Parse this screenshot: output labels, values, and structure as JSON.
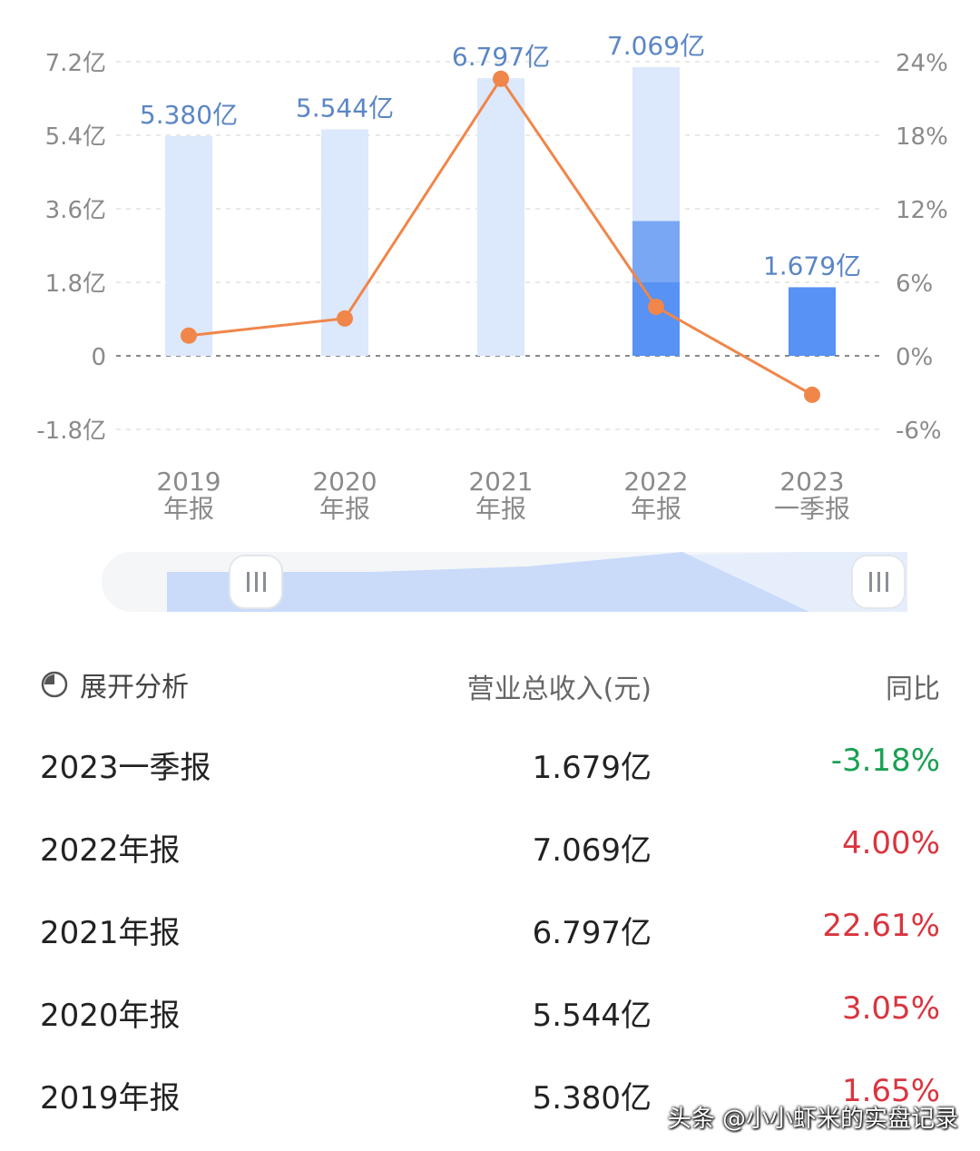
{
  "chart_data": {
    "type": "bar",
    "categories": [
      {
        "year": "2019",
        "report": "年报"
      },
      {
        "year": "2020",
        "report": "年报"
      },
      {
        "year": "2021",
        "report": "年报"
      },
      {
        "year": "2022",
        "report": "年报"
      },
      {
        "year": "2023",
        "report": "一季报"
      }
    ],
    "series": [
      {
        "type": "bar",
        "values": [
          5.38,
          5.544,
          6.797,
          7.069,
          1.679
        ],
        "labels": [
          "5.380亿",
          "5.544亿",
          "6.797亿",
          "7.069亿",
          "1.679亿"
        ]
      },
      {
        "type": "line",
        "values": [
          1.65,
          3.05,
          22.61,
          4.0,
          -3.18
        ]
      }
    ],
    "stacked_highlight_2022": [
      1.8,
      3.3
    ],
    "left_axis": {
      "ticks": [
        "7.2亿",
        "5.4亿",
        "3.6亿",
        "1.8亿",
        "0",
        "-1.8亿"
      ],
      "values": [
        7.2,
        5.4,
        3.6,
        1.8,
        0,
        -1.8
      ],
      "ylim": [
        -1.8,
        7.2
      ]
    },
    "right_axis": {
      "ticks": [
        "24%",
        "18%",
        "12%",
        "6%",
        "0%",
        "-6%"
      ],
      "values": [
        24,
        18,
        12,
        6,
        0,
        -6
      ],
      "ylim": [
        -6,
        24
      ]
    },
    "colors": {
      "bar_light": "#dce8fb",
      "bar_mid": "#7aa7f4",
      "bar_dark": "#5792f4",
      "line": "#f0864a",
      "label": "#5b86c5",
      "axis_text": "#8a8a8a",
      "grid": "#e2e2e2"
    }
  },
  "table": {
    "expand_label": "展开分析",
    "col_revenue": "营业总收入(元)",
    "col_yoy": "同比",
    "rows": [
      {
        "period": "2023一季报",
        "revenue": "1.679亿",
        "yoy": "-3.18%"
      },
      {
        "period": "2022年报",
        "revenue": "7.069亿",
        "yoy": "4.00%"
      },
      {
        "period": "2021年报",
        "revenue": "6.797亿",
        "yoy": "22.61%"
      },
      {
        "period": "2020年报",
        "revenue": "5.544亿",
        "yoy": "3.05%"
      },
      {
        "period": "2019年报",
        "revenue": "5.380亿",
        "yoy": "1.65%"
      }
    ]
  },
  "watermark": "头条 @小小虾米的实盘记录"
}
